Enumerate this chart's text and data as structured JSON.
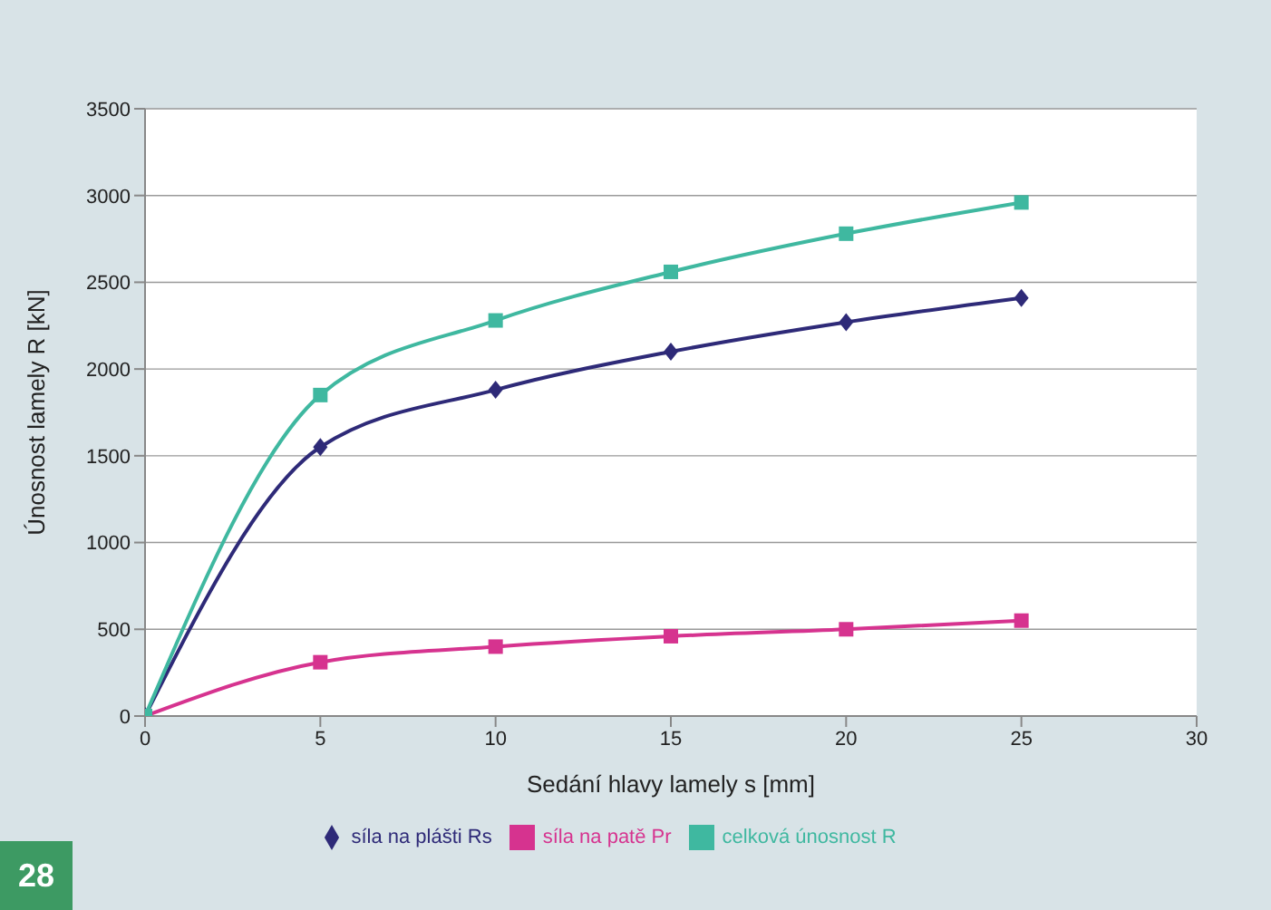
{
  "chart_data": {
    "type": "line",
    "xlabel": "Sedání hlavy lamely s [mm]",
    "ylabel": "Únosnost lamely R [kN]",
    "x": [
      0,
      5,
      10,
      15,
      20,
      25
    ],
    "xlim": [
      0,
      30
    ],
    "xticks": [
      0,
      5,
      10,
      15,
      20,
      25,
      30
    ],
    "ylim": [
      0,
      3500
    ],
    "yticks": [
      0,
      500,
      1000,
      1500,
      2000,
      2500,
      3000,
      3500
    ],
    "grid": "y",
    "legend": "bottom",
    "annotations": [
      "28"
    ],
    "series": [
      {
        "name": "síla na plášti Rs",
        "color": "#2e2a78",
        "marker": "diamond",
        "values": [
          0,
          1550,
          1880,
          2100,
          2270,
          2410
        ]
      },
      {
        "name": "síla na patě Pr",
        "color": "#d6338f",
        "marker": "square",
        "values": [
          0,
          310,
          400,
          460,
          500,
          550
        ]
      },
      {
        "name": "celková únosnost R",
        "color": "#3fb8a0",
        "marker": "square",
        "values": [
          0,
          1850,
          2280,
          2560,
          2780,
          2960
        ]
      }
    ]
  }
}
